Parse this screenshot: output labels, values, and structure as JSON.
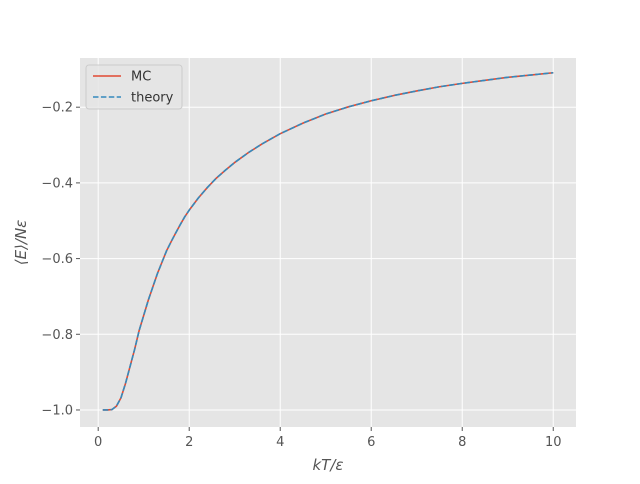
{
  "chart_data": {
    "type": "line",
    "title": "",
    "xlabel": "kT/ε",
    "ylabel": "⟨E⟩/Nε",
    "xlim": [
      -0.4,
      10.5
    ],
    "ylim": [
      -1.045,
      -0.07
    ],
    "x_ticks": [
      0,
      2,
      4,
      6,
      8,
      10
    ],
    "x_tick_labels": [
      "0",
      "2",
      "4",
      "6",
      "8",
      "10"
    ],
    "y_ticks": [
      -1.0,
      -0.8,
      -0.6,
      -0.4,
      -0.2
    ],
    "y_tick_labels": [
      "−1.0",
      "−0.8",
      "−0.6",
      "−0.4",
      "−0.2"
    ],
    "grid": true,
    "legend": {
      "position": "top-left"
    },
    "colors": {
      "background": "#e5e5e5",
      "grid": "#ffffff",
      "mc": "#e24a33",
      "theory": "#348abd"
    },
    "series": [
      {
        "name": "MC",
        "style": "solid",
        "x": [
          0.1,
          0.2,
          0.3,
          0.4,
          0.5,
          0.6,
          0.7,
          0.8,
          0.9,
          1.0,
          1.1,
          1.2,
          1.3,
          1.4,
          1.5,
          1.6,
          1.7,
          1.8,
          1.9,
          2.0,
          2.2,
          2.4,
          2.6,
          2.8,
          3.0,
          3.3,
          3.6,
          4.0,
          4.5,
          5.0,
          5.5,
          6.0,
          6.5,
          7.0,
          7.5,
          8.0,
          8.5,
          9.0,
          9.5,
          10.0
        ],
        "y": [
          -1.0,
          -1.0,
          -0.999,
          -0.99,
          -0.968,
          -0.93,
          -0.885,
          -0.84,
          -0.79,
          -0.75,
          -0.71,
          -0.675,
          -0.64,
          -0.61,
          -0.58,
          -0.556,
          -0.533,
          -0.511,
          -0.49,
          -0.472,
          -0.44,
          -0.412,
          -0.387,
          -0.366,
          -0.346,
          -0.32,
          -0.297,
          -0.27,
          -0.242,
          -0.218,
          -0.199,
          -0.183,
          -0.169,
          -0.157,
          -0.146,
          -0.137,
          -0.129,
          -0.121,
          -0.115,
          -0.109
        ]
      },
      {
        "name": "theory",
        "style": "dashed",
        "x": [
          0.1,
          0.2,
          0.3,
          0.4,
          0.5,
          0.6,
          0.7,
          0.8,
          0.9,
          1.0,
          1.1,
          1.2,
          1.3,
          1.4,
          1.5,
          1.6,
          1.7,
          1.8,
          1.9,
          2.0,
          2.2,
          2.4,
          2.6,
          2.8,
          3.0,
          3.3,
          3.6,
          4.0,
          4.5,
          5.0,
          5.5,
          6.0,
          6.5,
          7.0,
          7.5,
          8.0,
          8.5,
          9.0,
          9.5,
          10.0
        ],
        "y": [
          -1.0,
          -1.0,
          -0.999,
          -0.99,
          -0.968,
          -0.93,
          -0.885,
          -0.84,
          -0.79,
          -0.75,
          -0.71,
          -0.675,
          -0.64,
          -0.61,
          -0.58,
          -0.556,
          -0.533,
          -0.511,
          -0.49,
          -0.472,
          -0.44,
          -0.412,
          -0.387,
          -0.366,
          -0.346,
          -0.32,
          -0.297,
          -0.27,
          -0.242,
          -0.218,
          -0.199,
          -0.183,
          -0.169,
          -0.157,
          -0.146,
          -0.137,
          -0.129,
          -0.121,
          -0.115,
          -0.109
        ]
      }
    ]
  }
}
